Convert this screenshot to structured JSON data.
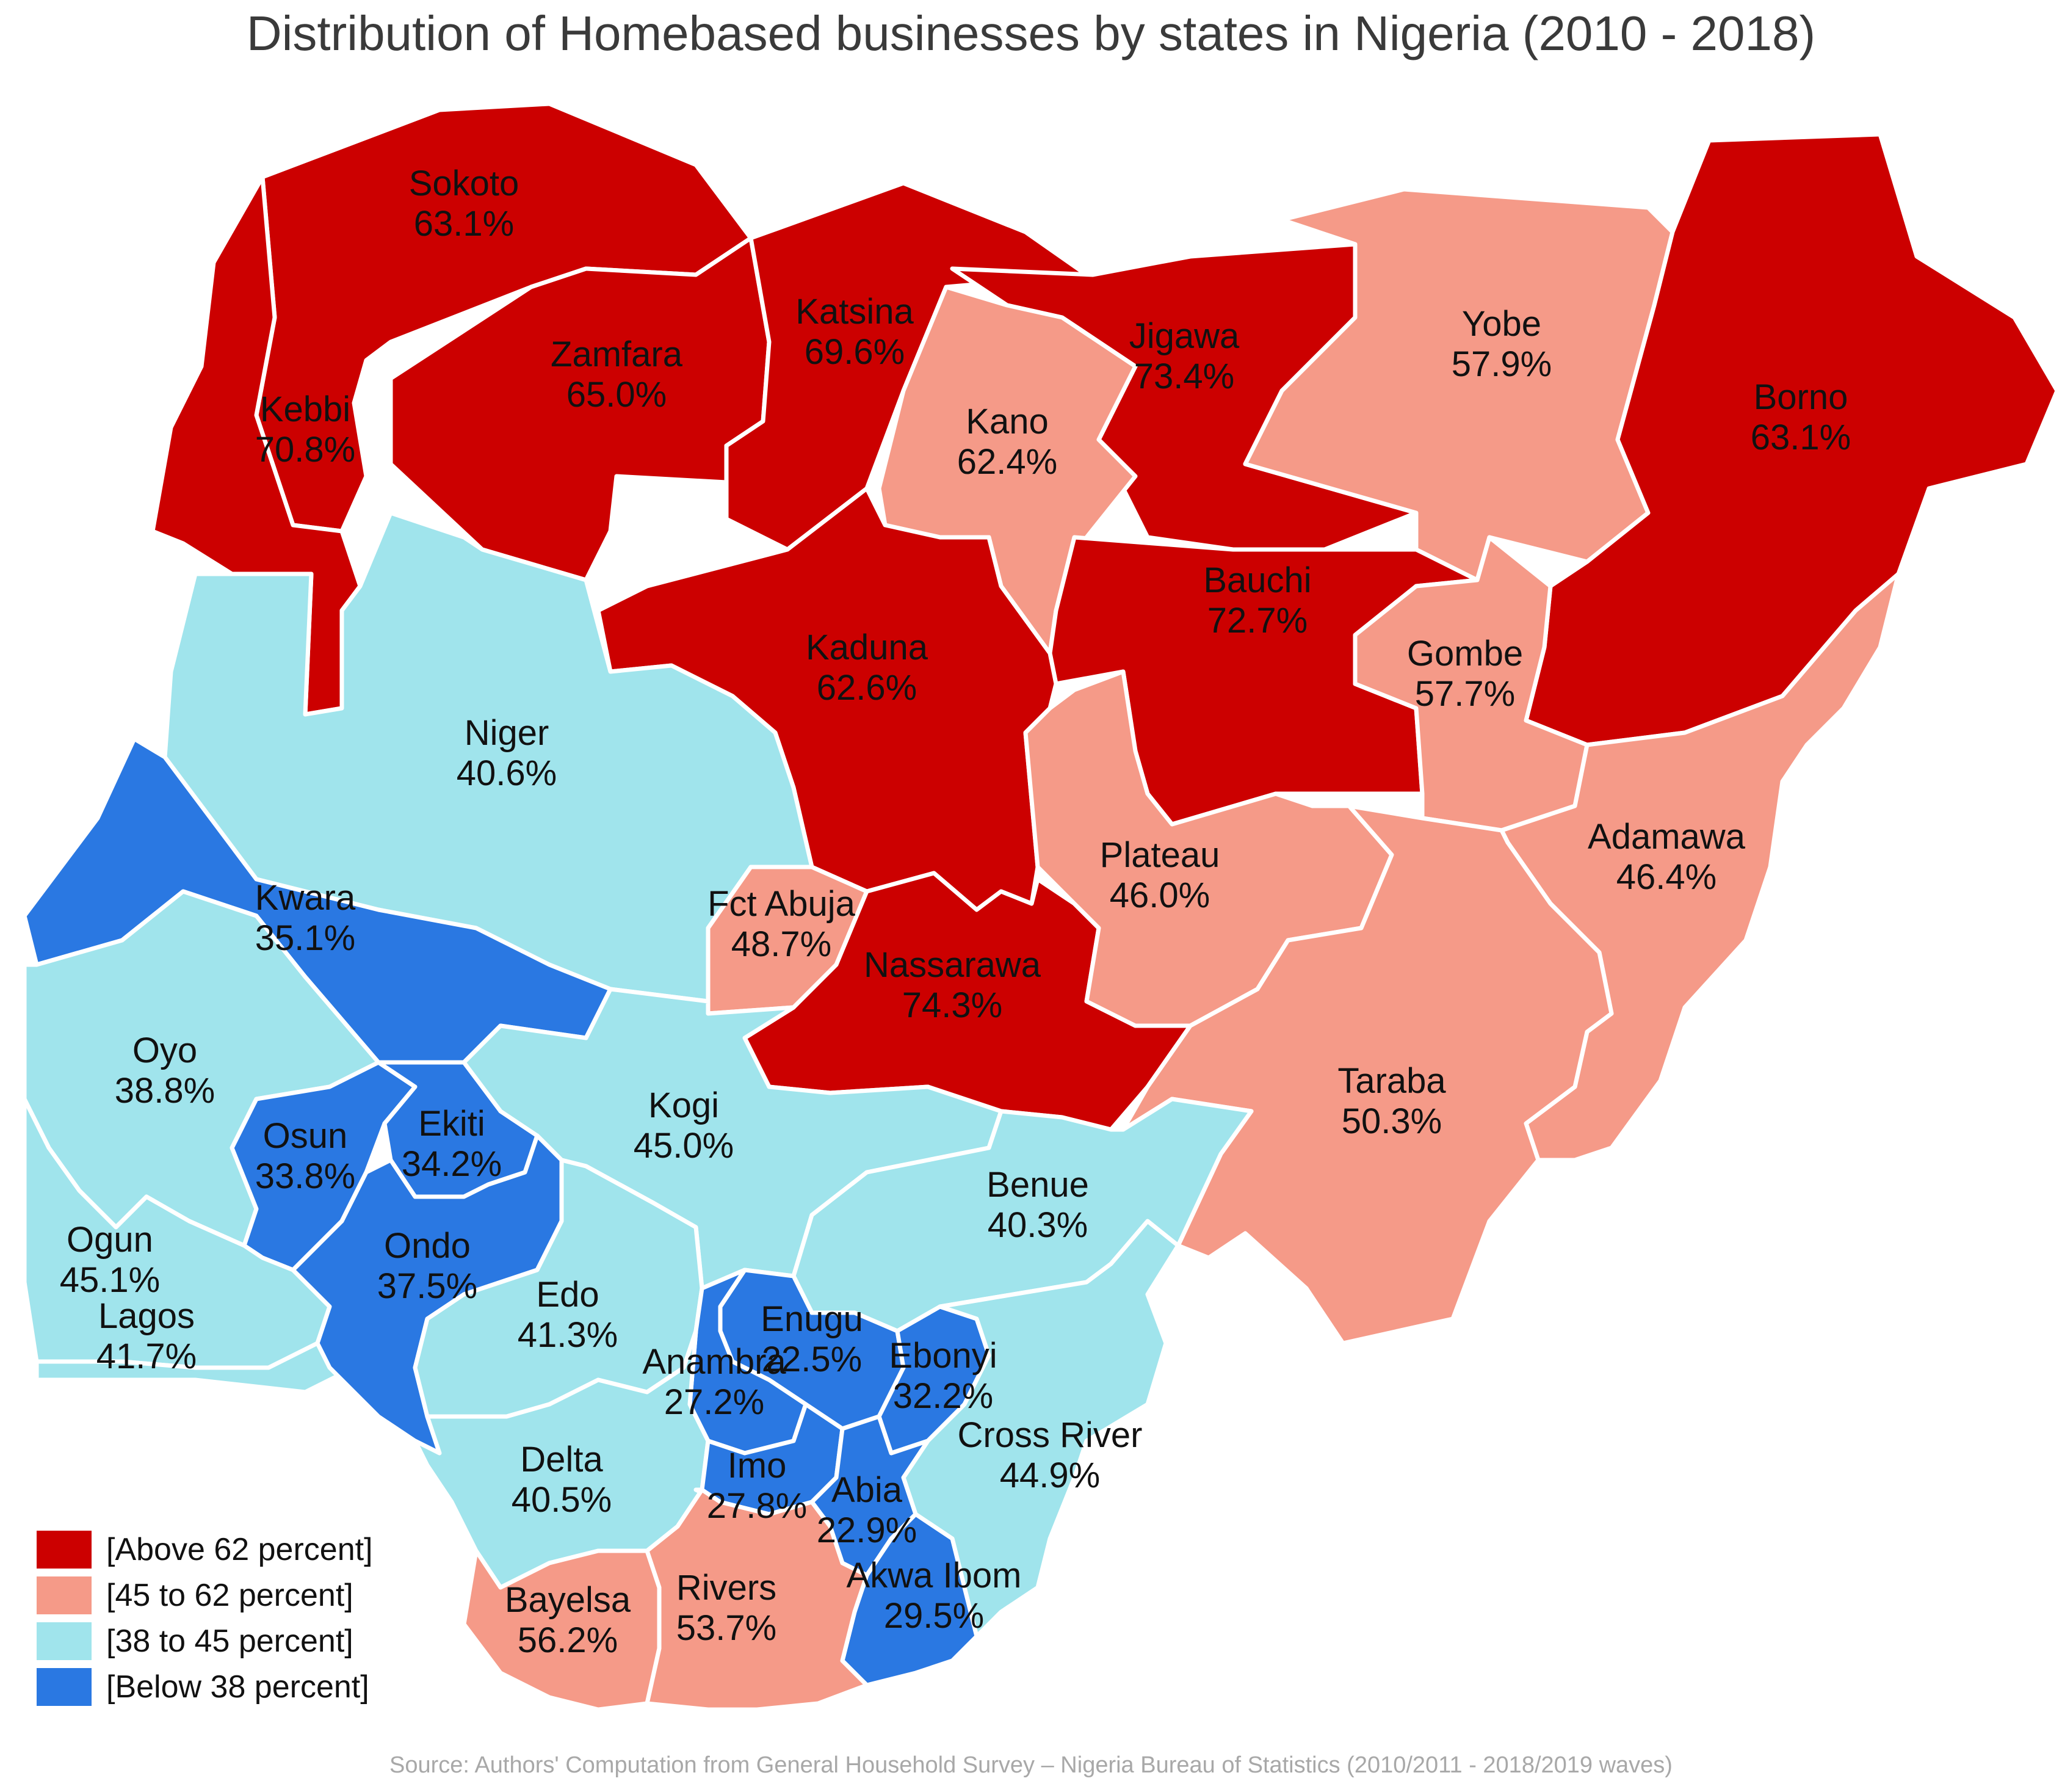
{
  "title": "Distribution of Homebased businesses by states in Nigeria (2010 - 2018)",
  "source": "Source: Authors' Computation from General Household Survey – Nigeria Bureau of Statistics (2010/2011 - 2018/2019 waves)",
  "colors": {
    "above_62": "#cc0000",
    "45_to_62": "#f59a88",
    "38_to_45": "#a0e4ec",
    "below_38": "#2a78e2"
  },
  "legend": [
    {
      "label": "[Above 62 percent]",
      "color_key": "above_62"
    },
    {
      "label": "[45 to 62 percent]",
      "color_key": "45_to_62"
    },
    {
      "label": "[38 to 45 percent]",
      "color_key": "38_to_45"
    },
    {
      "label": "[Below 38 percent]",
      "color_key": "below_38"
    }
  ],
  "states": [
    {
      "name": "Sokoto",
      "value": "63.1%",
      "class": "above_62"
    },
    {
      "name": "Kebbi",
      "value": "70.8%",
      "class": "above_62"
    },
    {
      "name": "Zamfara",
      "value": "65.0%",
      "class": "above_62"
    },
    {
      "name": "Katsina",
      "value": "69.6%",
      "class": "above_62"
    },
    {
      "name": "Jigawa",
      "value": "73.4%",
      "class": "above_62"
    },
    {
      "name": "Kano",
      "value": "62.4%",
      "class": "45_to_62"
    },
    {
      "name": "Yobe",
      "value": "57.9%",
      "class": "45_to_62"
    },
    {
      "name": "Borno",
      "value": "63.1%",
      "class": "above_62"
    },
    {
      "name": "Bauchi",
      "value": "72.7%",
      "class": "above_62"
    },
    {
      "name": "Gombe",
      "value": "57.7%",
      "class": "45_to_62"
    },
    {
      "name": "Kaduna",
      "value": "62.6%",
      "class": "above_62"
    },
    {
      "name": "Niger",
      "value": "40.6%",
      "class": "38_to_45"
    },
    {
      "name": "Kwara",
      "value": "35.1%",
      "class": "below_38"
    },
    {
      "name": "Fct Abuja",
      "value": "48.7%",
      "class": "45_to_62"
    },
    {
      "name": "Nassarawa",
      "value": "74.3%",
      "class": "above_62"
    },
    {
      "name": "Plateau",
      "value": "46.0%",
      "class": "45_to_62"
    },
    {
      "name": "Adamawa",
      "value": "46.4%",
      "class": "45_to_62"
    },
    {
      "name": "Taraba",
      "value": "50.3%",
      "class": "45_to_62"
    },
    {
      "name": "Oyo",
      "value": "38.8%",
      "class": "38_to_45"
    },
    {
      "name": "Osun",
      "value": "33.8%",
      "class": "below_38"
    },
    {
      "name": "Ekiti",
      "value": "34.2%",
      "class": "below_38"
    },
    {
      "name": "Kogi",
      "value": "45.0%",
      "class": "38_to_45"
    },
    {
      "name": "Benue",
      "value": "40.3%",
      "class": "38_to_45"
    },
    {
      "name": "Ogun",
      "value": "45.1%",
      "class": "38_to_45"
    },
    {
      "name": "Lagos",
      "value": "41.7%",
      "class": "38_to_45"
    },
    {
      "name": "Ondo",
      "value": "37.5%",
      "class": "below_38"
    },
    {
      "name": "Edo",
      "value": "41.3%",
      "class": "38_to_45"
    },
    {
      "name": "Enugu",
      "value": "22.5%",
      "class": "below_38"
    },
    {
      "name": "Anambra",
      "value": "27.2%",
      "class": "below_38"
    },
    {
      "name": "Ebonyi",
      "value": "32.2%",
      "class": "below_38"
    },
    {
      "name": "Cross River",
      "value": "44.9%",
      "class": "38_to_45"
    },
    {
      "name": "Delta",
      "value": "40.5%",
      "class": "38_to_45"
    },
    {
      "name": "Imo",
      "value": "27.8%",
      "class": "below_38"
    },
    {
      "name": "Abia",
      "value": "22.9%",
      "class": "below_38"
    },
    {
      "name": "Akwa Ibom",
      "value": "29.5%",
      "class": "below_38"
    },
    {
      "name": "Bayelsa",
      "value": "56.2%",
      "class": "45_to_62"
    },
    {
      "name": "Rivers",
      "value": "53.7%",
      "class": "45_to_62"
    }
  ]
}
